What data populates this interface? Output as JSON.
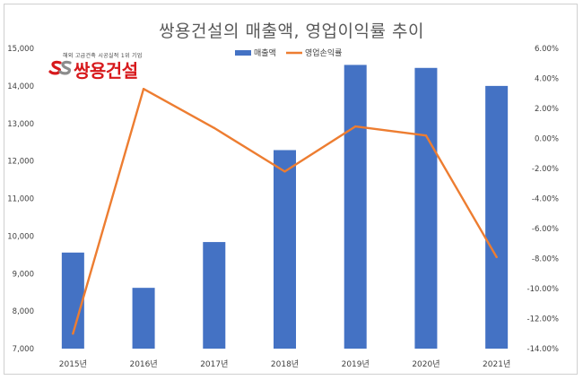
{
  "chart_data": {
    "type": "bar+line",
    "title": "쌍용건설의 매출액, 영업이익률 추이",
    "categories": [
      "2015년",
      "2016년",
      "2017년",
      "2018년",
      "2019년",
      "2020년",
      "2021년"
    ],
    "series": [
      {
        "name": "매출액",
        "type": "bar",
        "axis": "left",
        "color": "#4472C4",
        "values": [
          9560,
          8620,
          9840,
          12290,
          14560,
          14480,
          14000
        ]
      },
      {
        "name": "영업손익률",
        "type": "line",
        "axis": "right",
        "color": "#ED7D31",
        "values": [
          -13.0,
          3.3,
          0.7,
          -2.2,
          0.8,
          0.2,
          -7.9
        ]
      }
    ],
    "y_left": {
      "min": 7000,
      "max": 15000,
      "step": 1000,
      "ticks": [
        "7,000",
        "8,000",
        "9,000",
        "10,000",
        "11,000",
        "12,000",
        "13,000",
        "14,000",
        "15,000"
      ]
    },
    "y_right": {
      "min": -14,
      "max": 6,
      "step": 2,
      "ticks": [
        "-14.00%",
        "-12.00%",
        "-10.00%",
        "-8.00%",
        "-6.00%",
        "-4.00%",
        "-2.00%",
        "0.00%",
        "2.00%",
        "4.00%",
        "6.00%"
      ]
    },
    "legend_position": "top-center",
    "grid": false
  },
  "logo": {
    "tagline": "해외 고급건축 시공실적 1위 기업",
    "name": "쌍용건설",
    "mark_color": "#d7191c"
  }
}
